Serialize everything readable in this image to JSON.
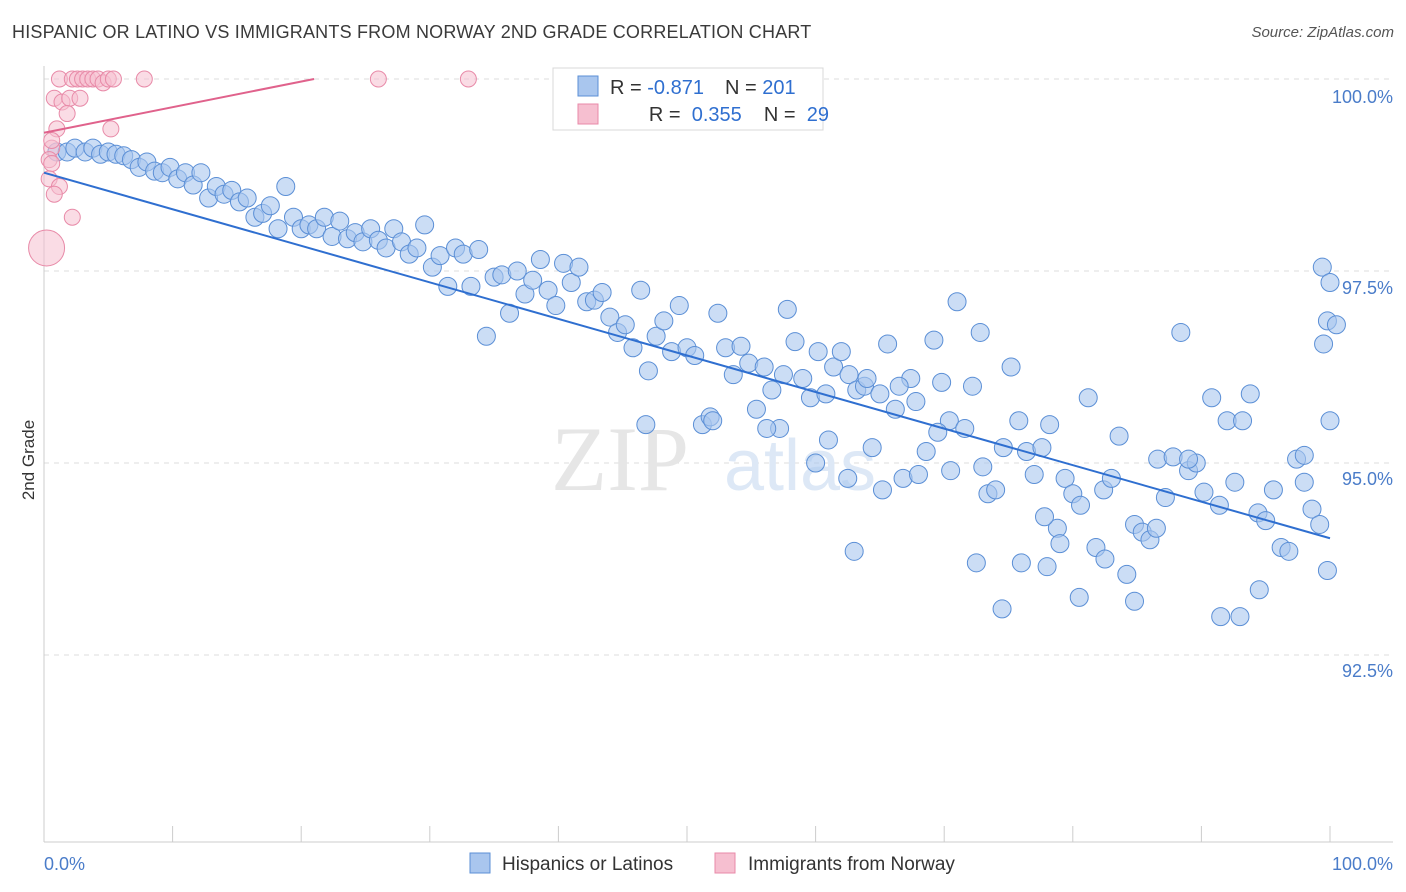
{
  "title": "HISPANIC OR LATINO VS IMMIGRANTS FROM NORWAY 2ND GRADE CORRELATION CHART",
  "source": "Source: ZipAtlas.com",
  "watermark": {
    "zip": "ZIP",
    "atlas": "atlas"
  },
  "colors": {
    "blue_fill": "#a9c6ee",
    "blue_stroke": "#5b8fd6",
    "blue_line": "#2f6fd0",
    "pink_fill": "#f6bfd0",
    "pink_stroke": "#e88aa8",
    "pink_line": "#e0628c",
    "tick_text": "#4a7cc9",
    "grid": "#dddddd"
  },
  "legend": {
    "rows": [
      {
        "r_label": "R = ",
        "r_value": "-0.871",
        "n_label": "N = ",
        "n_value": "201"
      },
      {
        "r_label": "R = ",
        "r_value": " 0.355",
        "n_label": "N = ",
        "n_value": " 29"
      }
    ]
  },
  "chart_data": {
    "type": "scatter",
    "title": "HISPANIC OR LATINO VS IMMIGRANTS FROM NORWAY 2ND GRADE CORRELATION CHART",
    "xlabel": "",
    "ylabel": "2nd Grade",
    "xlim": [
      0,
      100
    ],
    "ylim": [
      89.8,
      100.3
    ],
    "x_tick_labels": [
      "0.0%",
      "100.0%"
    ],
    "y_ticks": [
      {
        "value": 100.0,
        "label": "100.0%"
      },
      {
        "value": 97.5,
        "label": "97.5%"
      },
      {
        "value": 95.0,
        "label": "95.0%"
      },
      {
        "value": 92.5,
        "label": "92.5%"
      }
    ],
    "grid": true,
    "legend_position": "bottom",
    "series": [
      {
        "name": "Hispanics or Latinos",
        "color": "blue",
        "trend": {
          "x": [
            0,
            100
          ],
          "y": [
            98.78,
            94.02
          ]
        },
        "points": [
          [
            1.0,
            99.05
          ],
          [
            1.8,
            99.05
          ],
          [
            2.4,
            99.1
          ],
          [
            3.2,
            99.05
          ],
          [
            3.8,
            99.1
          ],
          [
            4.4,
            99.02
          ],
          [
            5.0,
            99.05
          ],
          [
            5.6,
            99.02
          ],
          [
            6.2,
            99.0
          ],
          [
            6.8,
            98.95
          ],
          [
            7.4,
            98.85
          ],
          [
            8.0,
            98.92
          ],
          [
            8.6,
            98.8
          ],
          [
            9.2,
            98.78
          ],
          [
            9.8,
            98.85
          ],
          [
            10.4,
            98.7
          ],
          [
            11.0,
            98.78
          ],
          [
            11.6,
            98.62
          ],
          [
            12.2,
            98.78
          ],
          [
            12.8,
            98.45
          ],
          [
            13.4,
            98.6
          ],
          [
            14.0,
            98.5
          ],
          [
            14.6,
            98.55
          ],
          [
            15.2,
            98.4
          ],
          [
            15.8,
            98.45
          ],
          [
            16.4,
            98.2
          ],
          [
            17.0,
            98.25
          ],
          [
            17.6,
            98.35
          ],
          [
            18.2,
            98.05
          ],
          [
            18.8,
            98.6
          ],
          [
            19.4,
            98.2
          ],
          [
            20.0,
            98.05
          ],
          [
            20.6,
            98.1
          ],
          [
            21.2,
            98.05
          ],
          [
            21.8,
            98.2
          ],
          [
            22.4,
            97.95
          ],
          [
            23.0,
            98.15
          ],
          [
            23.6,
            97.92
          ],
          [
            24.2,
            98.0
          ],
          [
            24.8,
            97.88
          ],
          [
            25.4,
            98.05
          ],
          [
            26.0,
            97.9
          ],
          [
            26.6,
            97.8
          ],
          [
            27.2,
            98.05
          ],
          [
            27.8,
            97.88
          ],
          [
            28.4,
            97.72
          ],
          [
            29.0,
            97.8
          ],
          [
            29.6,
            98.1
          ],
          [
            30.2,
            97.55
          ],
          [
            30.8,
            97.7
          ],
          [
            31.4,
            97.3
          ],
          [
            32.0,
            97.8
          ],
          [
            32.6,
            97.72
          ],
          [
            33.2,
            97.3
          ],
          [
            33.8,
            97.78
          ],
          [
            34.4,
            96.65
          ],
          [
            35.0,
            97.42
          ],
          [
            35.6,
            97.45
          ],
          [
            36.2,
            96.95
          ],
          [
            36.8,
            97.5
          ],
          [
            37.4,
            97.2
          ],
          [
            38.0,
            97.38
          ],
          [
            38.6,
            97.65
          ],
          [
            39.2,
            97.25
          ],
          [
            39.8,
            97.05
          ],
          [
            40.4,
            97.6
          ],
          [
            41.0,
            97.35
          ],
          [
            41.6,
            97.55
          ],
          [
            42.2,
            97.1
          ],
          [
            42.8,
            97.12
          ],
          [
            43.4,
            97.22
          ],
          [
            44.0,
            96.9
          ],
          [
            44.6,
            96.7
          ],
          [
            45.2,
            96.8
          ],
          [
            45.8,
            96.5
          ],
          [
            46.4,
            97.25
          ],
          [
            47.0,
            96.2
          ],
          [
            47.6,
            96.65
          ],
          [
            48.2,
            96.85
          ],
          [
            48.8,
            96.45
          ],
          [
            49.4,
            97.05
          ],
          [
            50.0,
            96.5
          ],
          [
            50.6,
            96.4
          ],
          [
            51.2,
            95.5
          ],
          [
            51.8,
            95.6
          ],
          [
            52.4,
            96.95
          ],
          [
            53.0,
            96.5
          ],
          [
            53.6,
            96.15
          ],
          [
            54.2,
            96.52
          ],
          [
            54.8,
            96.3
          ],
          [
            55.4,
            95.7
          ],
          [
            56.0,
            96.25
          ],
          [
            56.6,
            95.95
          ],
          [
            57.2,
            95.45
          ],
          [
            57.8,
            97.0
          ],
          [
            58.4,
            96.58
          ],
          [
            59.0,
            96.1
          ],
          [
            59.6,
            95.85
          ],
          [
            60.2,
            96.45
          ],
          [
            60.8,
            95.9
          ],
          [
            61.4,
            96.25
          ],
          [
            62.0,
            96.45
          ],
          [
            62.6,
            96.15
          ],
          [
            63.2,
            95.95
          ],
          [
            63.8,
            96.0
          ],
          [
            64.4,
            95.2
          ],
          [
            65.0,
            95.9
          ],
          [
            65.6,
            96.55
          ],
          [
            66.2,
            95.7
          ],
          [
            66.8,
            94.8
          ],
          [
            67.4,
            96.1
          ],
          [
            68.0,
            94.85
          ],
          [
            68.6,
            95.15
          ],
          [
            69.2,
            96.6
          ],
          [
            69.8,
            96.05
          ],
          [
            70.4,
            95.55
          ],
          [
            71.0,
            97.1
          ],
          [
            71.6,
            95.45
          ],
          [
            72.2,
            96.0
          ],
          [
            72.8,
            96.7
          ],
          [
            73.4,
            94.6
          ],
          [
            74.0,
            94.65
          ],
          [
            74.6,
            95.2
          ],
          [
            75.2,
            96.25
          ],
          [
            75.8,
            95.55
          ],
          [
            76.4,
            95.15
          ],
          [
            77.0,
            94.85
          ],
          [
            77.6,
            95.2
          ],
          [
            78.2,
            95.5
          ],
          [
            78.8,
            94.15
          ],
          [
            79.4,
            94.8
          ],
          [
            80.0,
            94.6
          ],
          [
            80.6,
            94.45
          ],
          [
            81.2,
            95.85
          ],
          [
            81.8,
            93.9
          ],
          [
            82.4,
            94.65
          ],
          [
            83.0,
            94.8
          ],
          [
            83.6,
            95.35
          ],
          [
            84.2,
            93.55
          ],
          [
            84.8,
            94.2
          ],
          [
            85.4,
            94.1
          ],
          [
            86.0,
            94.0
          ],
          [
            86.6,
            95.05
          ],
          [
            87.2,
            94.55
          ],
          [
            87.8,
            95.08
          ],
          [
            88.4,
            96.7
          ],
          [
            89.0,
            94.9
          ],
          [
            89.6,
            95.0
          ],
          [
            90.2,
            94.62
          ],
          [
            90.8,
            95.85
          ],
          [
            91.4,
            94.45
          ],
          [
            92.0,
            95.55
          ],
          [
            92.6,
            94.75
          ],
          [
            93.2,
            95.55
          ],
          [
            93.8,
            95.9
          ],
          [
            94.4,
            94.35
          ],
          [
            95.0,
            94.25
          ],
          [
            95.6,
            94.65
          ],
          [
            96.2,
            93.9
          ],
          [
            96.8,
            93.85
          ],
          [
            97.4,
            95.05
          ],
          [
            98.0,
            94.75
          ],
          [
            98.6,
            94.4
          ],
          [
            99.2,
            94.2
          ],
          [
            99.8,
            93.6
          ],
          [
            62.5,
            94.8
          ],
          [
            64.0,
            96.1
          ],
          [
            66.5,
            96.0
          ],
          [
            69.5,
            95.4
          ],
          [
            72.5,
            93.7
          ],
          [
            76.0,
            93.7
          ],
          [
            78.0,
            93.65
          ],
          [
            80.5,
            93.25
          ],
          [
            82.5,
            93.75
          ],
          [
            84.8,
            93.2
          ],
          [
            86.5,
            94.15
          ],
          [
            89.0,
            95.05
          ],
          [
            91.5,
            93.0
          ],
          [
            93.0,
            93.0
          ],
          [
            94.5,
            93.35
          ],
          [
            98.0,
            95.1
          ],
          [
            100.0,
            95.55
          ],
          [
            99.5,
            96.55
          ],
          [
            99.8,
            96.85
          ],
          [
            100.5,
            96.8
          ],
          [
            99.4,
            97.55
          ],
          [
            100.0,
            97.35
          ],
          [
            46.8,
            95.5
          ],
          [
            52.0,
            95.55
          ],
          [
            56.2,
            95.45
          ],
          [
            57.5,
            96.15
          ],
          [
            60.0,
            95.0
          ],
          [
            61.0,
            95.3
          ],
          [
            63.0,
            93.85
          ],
          [
            65.2,
            94.65
          ],
          [
            67.8,
            95.8
          ],
          [
            70.5,
            94.9
          ],
          [
            73.0,
            94.95
          ],
          [
            74.5,
            93.1
          ],
          [
            77.8,
            94.3
          ],
          [
            79.0,
            93.95
          ]
        ]
      },
      {
        "name": "Immigrants from Norway",
        "color": "pink",
        "trend": {
          "x": [
            0,
            21
          ],
          "y": [
            99.3,
            100.0
          ]
        },
        "points": [
          [
            1.2,
            100.0
          ],
          [
            2.2,
            100.0
          ],
          [
            2.6,
            100.0
          ],
          [
            3.0,
            100.0
          ],
          [
            3.4,
            100.0
          ],
          [
            3.8,
            100.0
          ],
          [
            4.2,
            100.0
          ],
          [
            4.6,
            99.95
          ],
          [
            5.0,
            100.0
          ],
          [
            5.4,
            100.0
          ],
          [
            0.8,
            99.75
          ],
          [
            1.4,
            99.7
          ],
          [
            2.0,
            99.75
          ],
          [
            2.8,
            99.75
          ],
          [
            1.8,
            99.55
          ],
          [
            1.0,
            99.35
          ],
          [
            5.2,
            99.35
          ],
          [
            0.6,
            99.1
          ],
          [
            0.4,
            98.95
          ],
          [
            0.6,
            98.9
          ],
          [
            0.4,
            98.7
          ],
          [
            1.2,
            98.6
          ],
          [
            0.8,
            98.5
          ],
          [
            2.2,
            98.2
          ],
          [
            0.2,
            97.8
          ],
          [
            7.8,
            100.0
          ],
          [
            26.0,
            100.0
          ],
          [
            33.0,
            100.0
          ],
          [
            0.6,
            99.2
          ]
        ]
      }
    ]
  },
  "bottom_legend": [
    {
      "label": "Hispanics or Latinos",
      "color": "blue"
    },
    {
      "label": "Immigrants from Norway",
      "color": "pink"
    }
  ]
}
